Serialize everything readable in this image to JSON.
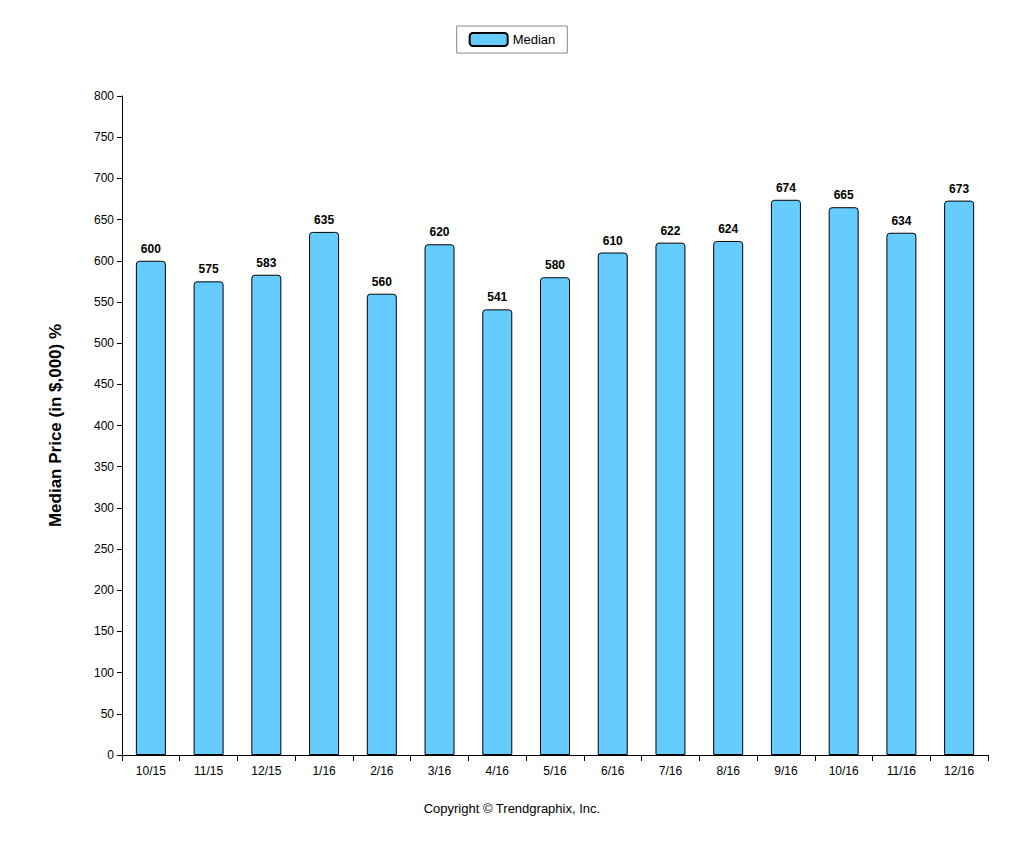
{
  "chart_data": {
    "type": "bar",
    "categories": [
      "10/15",
      "11/15",
      "12/15",
      "1/16",
      "2/16",
      "3/16",
      "4/16",
      "5/16",
      "6/16",
      "7/16",
      "8/16",
      "9/16",
      "10/16",
      "11/16",
      "12/16"
    ],
    "series": [
      {
        "name": "Median",
        "color": "#66ccff",
        "values": [
          600,
          575,
          583,
          635,
          560,
          620,
          541,
          580,
          610,
          622,
          624,
          674,
          665,
          634,
          673
        ]
      }
    ],
    "y_label": "Median Price (in $,000) %",
    "ylim": [
      0,
      800
    ],
    "yticks": [
      0,
      50,
      100,
      150,
      200,
      250,
      300,
      350,
      400,
      450,
      500,
      550,
      600,
      650,
      700,
      750,
      800
    ],
    "grid": false,
    "legend": "top",
    "data_labels": true,
    "annotations": [
      "Copyright © Trendgraphix, Inc."
    ]
  }
}
